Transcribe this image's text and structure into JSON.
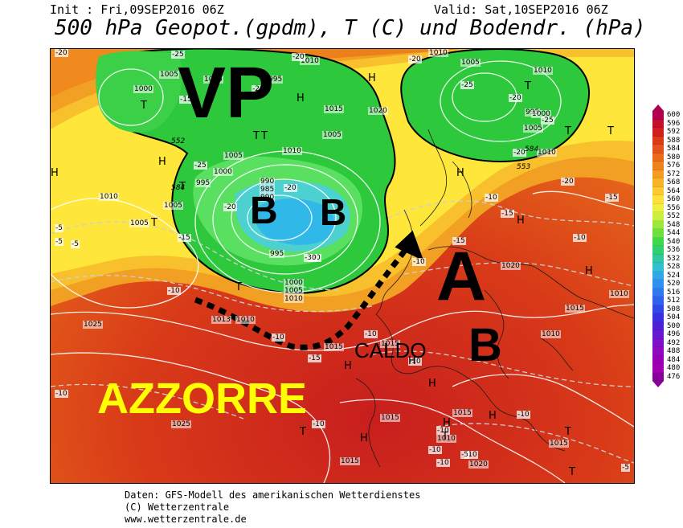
{
  "header": {
    "init": "Init : Fri,09SEP2016 06Z",
    "valid": "Valid: Sat,10SEP2016 06Z",
    "title": "500 hPa Geopot.(gpdm), T (C) und Bodendr. (hPa)"
  },
  "footer": {
    "line1": "Daten: GFS-Modell des amerikanischen Wetterdienstes",
    "line2": "(C) Wetterzentrale",
    "line3": "www.wetterzentrale.de"
  },
  "annotations": {
    "vp": "VP",
    "b1": "B",
    "b2": "B",
    "a": "A",
    "b3": "B",
    "caldo": "CALDO",
    "azzorre": "AZZORRE"
  },
  "legend": {
    "values": [
      "600",
      "596",
      "592",
      "588",
      "584",
      "580",
      "576",
      "572",
      "568",
      "564",
      "560",
      "556",
      "552",
      "548",
      "544",
      "540",
      "536",
      "532",
      "528",
      "524",
      "520",
      "516",
      "512",
      "508",
      "504",
      "500",
      "496",
      "492",
      "488",
      "484",
      "480",
      "476"
    ],
    "colors": [
      "#b0004e",
      "#c4102a",
      "#d21e1e",
      "#dc3a16",
      "#e2521a",
      "#e86a1a",
      "#ee821e",
      "#f49c22",
      "#f8b428",
      "#fcca30",
      "#fee038",
      "#eef040",
      "#c8f03c",
      "#9ae83a",
      "#6ce03c",
      "#40d84a",
      "#30d070",
      "#30c8a0",
      "#30c0d0",
      "#30a8e8",
      "#3090f0",
      "#3078f0",
      "#3060f0",
      "#3048e8",
      "#3830e0",
      "#5020d8",
      "#6818d0",
      "#8010c8",
      "#9008c0",
      "#9800b8",
      "#a000b0",
      "#880098"
    ]
  },
  "map_labels": {
    "pressure": [
      {
        "t": "1005"
      },
      {
        "t": "1000"
      },
      {
        "t": "1005"
      },
      {
        "t": "1010"
      },
      {
        "t": "995"
      },
      {
        "t": "1015"
      },
      {
        "t": "1020"
      },
      {
        "t": "1005"
      },
      {
        "t": "1010"
      },
      {
        "t": "1000"
      },
      {
        "t": "995"
      },
      {
        "t": "1005"
      },
      {
        "t": "1005"
      },
      {
        "t": "1010"
      },
      {
        "t": "990"
      },
      {
        "t": "985"
      },
      {
        "t": "990"
      },
      {
        "t": "995"
      },
      {
        "t": "1000"
      },
      {
        "t": "1005"
      },
      {
        "t": "1010"
      },
      {
        "t": "1015"
      },
      {
        "t": "1010"
      },
      {
        "t": "1005"
      },
      {
        "t": "1025"
      },
      {
        "t": "1025"
      },
      {
        "t": "1020"
      },
      {
        "t": "1015"
      },
      {
        "t": "1020"
      },
      {
        "t": "1015"
      },
      {
        "t": "1010"
      },
      {
        "t": "1010"
      },
      {
        "t": "1015"
      },
      {
        "t": "1015"
      },
      {
        "t": "1015"
      },
      {
        "t": "1010"
      },
      {
        "t": "1005"
      },
      {
        "t": "1010"
      },
      {
        "t": "995"
      },
      {
        "t": "1000"
      },
      {
        "t": "1005"
      },
      {
        "t": "1010"
      },
      {
        "t": "1013"
      },
      {
        "t": "1015"
      },
      {
        "t": "1010"
      },
      {
        "t": "1020"
      }
    ],
    "temps": [
      {
        "t": "-20"
      },
      {
        "t": "-25"
      },
      {
        "t": "-20"
      },
      {
        "t": "-25"
      },
      {
        "t": "-20"
      },
      {
        "t": "-25"
      },
      {
        "t": "-20"
      },
      {
        "t": "-15"
      },
      {
        "t": "-10"
      },
      {
        "t": "-5"
      },
      {
        "t": "-5"
      },
      {
        "t": "-10"
      },
      {
        "t": "-15"
      },
      {
        "t": "-20"
      },
      {
        "t": "-15"
      },
      {
        "t": "-10"
      },
      {
        "t": "-5"
      },
      {
        "t": "-10"
      },
      {
        "t": "-15"
      },
      {
        "t": "-20"
      },
      {
        "t": "-25"
      },
      {
        "t": "-20"
      },
      {
        "t": "-15"
      },
      {
        "t": "-10"
      },
      {
        "t": "-10"
      },
      {
        "t": "-10"
      },
      {
        "t": "-10"
      },
      {
        "t": "-5"
      },
      {
        "t": "-30"
      },
      {
        "t": "-30"
      },
      {
        "t": "-10"
      },
      {
        "t": "-10"
      },
      {
        "t": "-10"
      },
      {
        "t": "-10"
      },
      {
        "t": "-10"
      },
      {
        "t": "-10"
      },
      {
        "t": "-5"
      },
      {
        "t": "-15"
      },
      {
        "t": "-20"
      },
      {
        "t": "-20"
      }
    ],
    "markers": [
      {
        "t": "T"
      },
      {
        "t": "T"
      },
      {
        "t": "T"
      },
      {
        "t": "T"
      },
      {
        "t": "T"
      },
      {
        "t": "T"
      },
      {
        "t": "T"
      },
      {
        "t": "T"
      },
      {
        "t": "T"
      },
      {
        "t": "H"
      },
      {
        "t": "H"
      },
      {
        "t": "H"
      },
      {
        "t": "H"
      },
      {
        "t": "H"
      },
      {
        "t": "H"
      },
      {
        "t": "H"
      },
      {
        "t": "H"
      },
      {
        "t": "H"
      },
      {
        "t": "H"
      },
      {
        "t": "H"
      },
      {
        "t": "H"
      },
      {
        "t": "T"
      },
      {
        "t": "T"
      },
      {
        "t": "H"
      },
      {
        "t": "T"
      },
      {
        "t": "T"
      }
    ],
    "contour_values": [
      "552",
      "584",
      "553",
      "584"
    ]
  }
}
